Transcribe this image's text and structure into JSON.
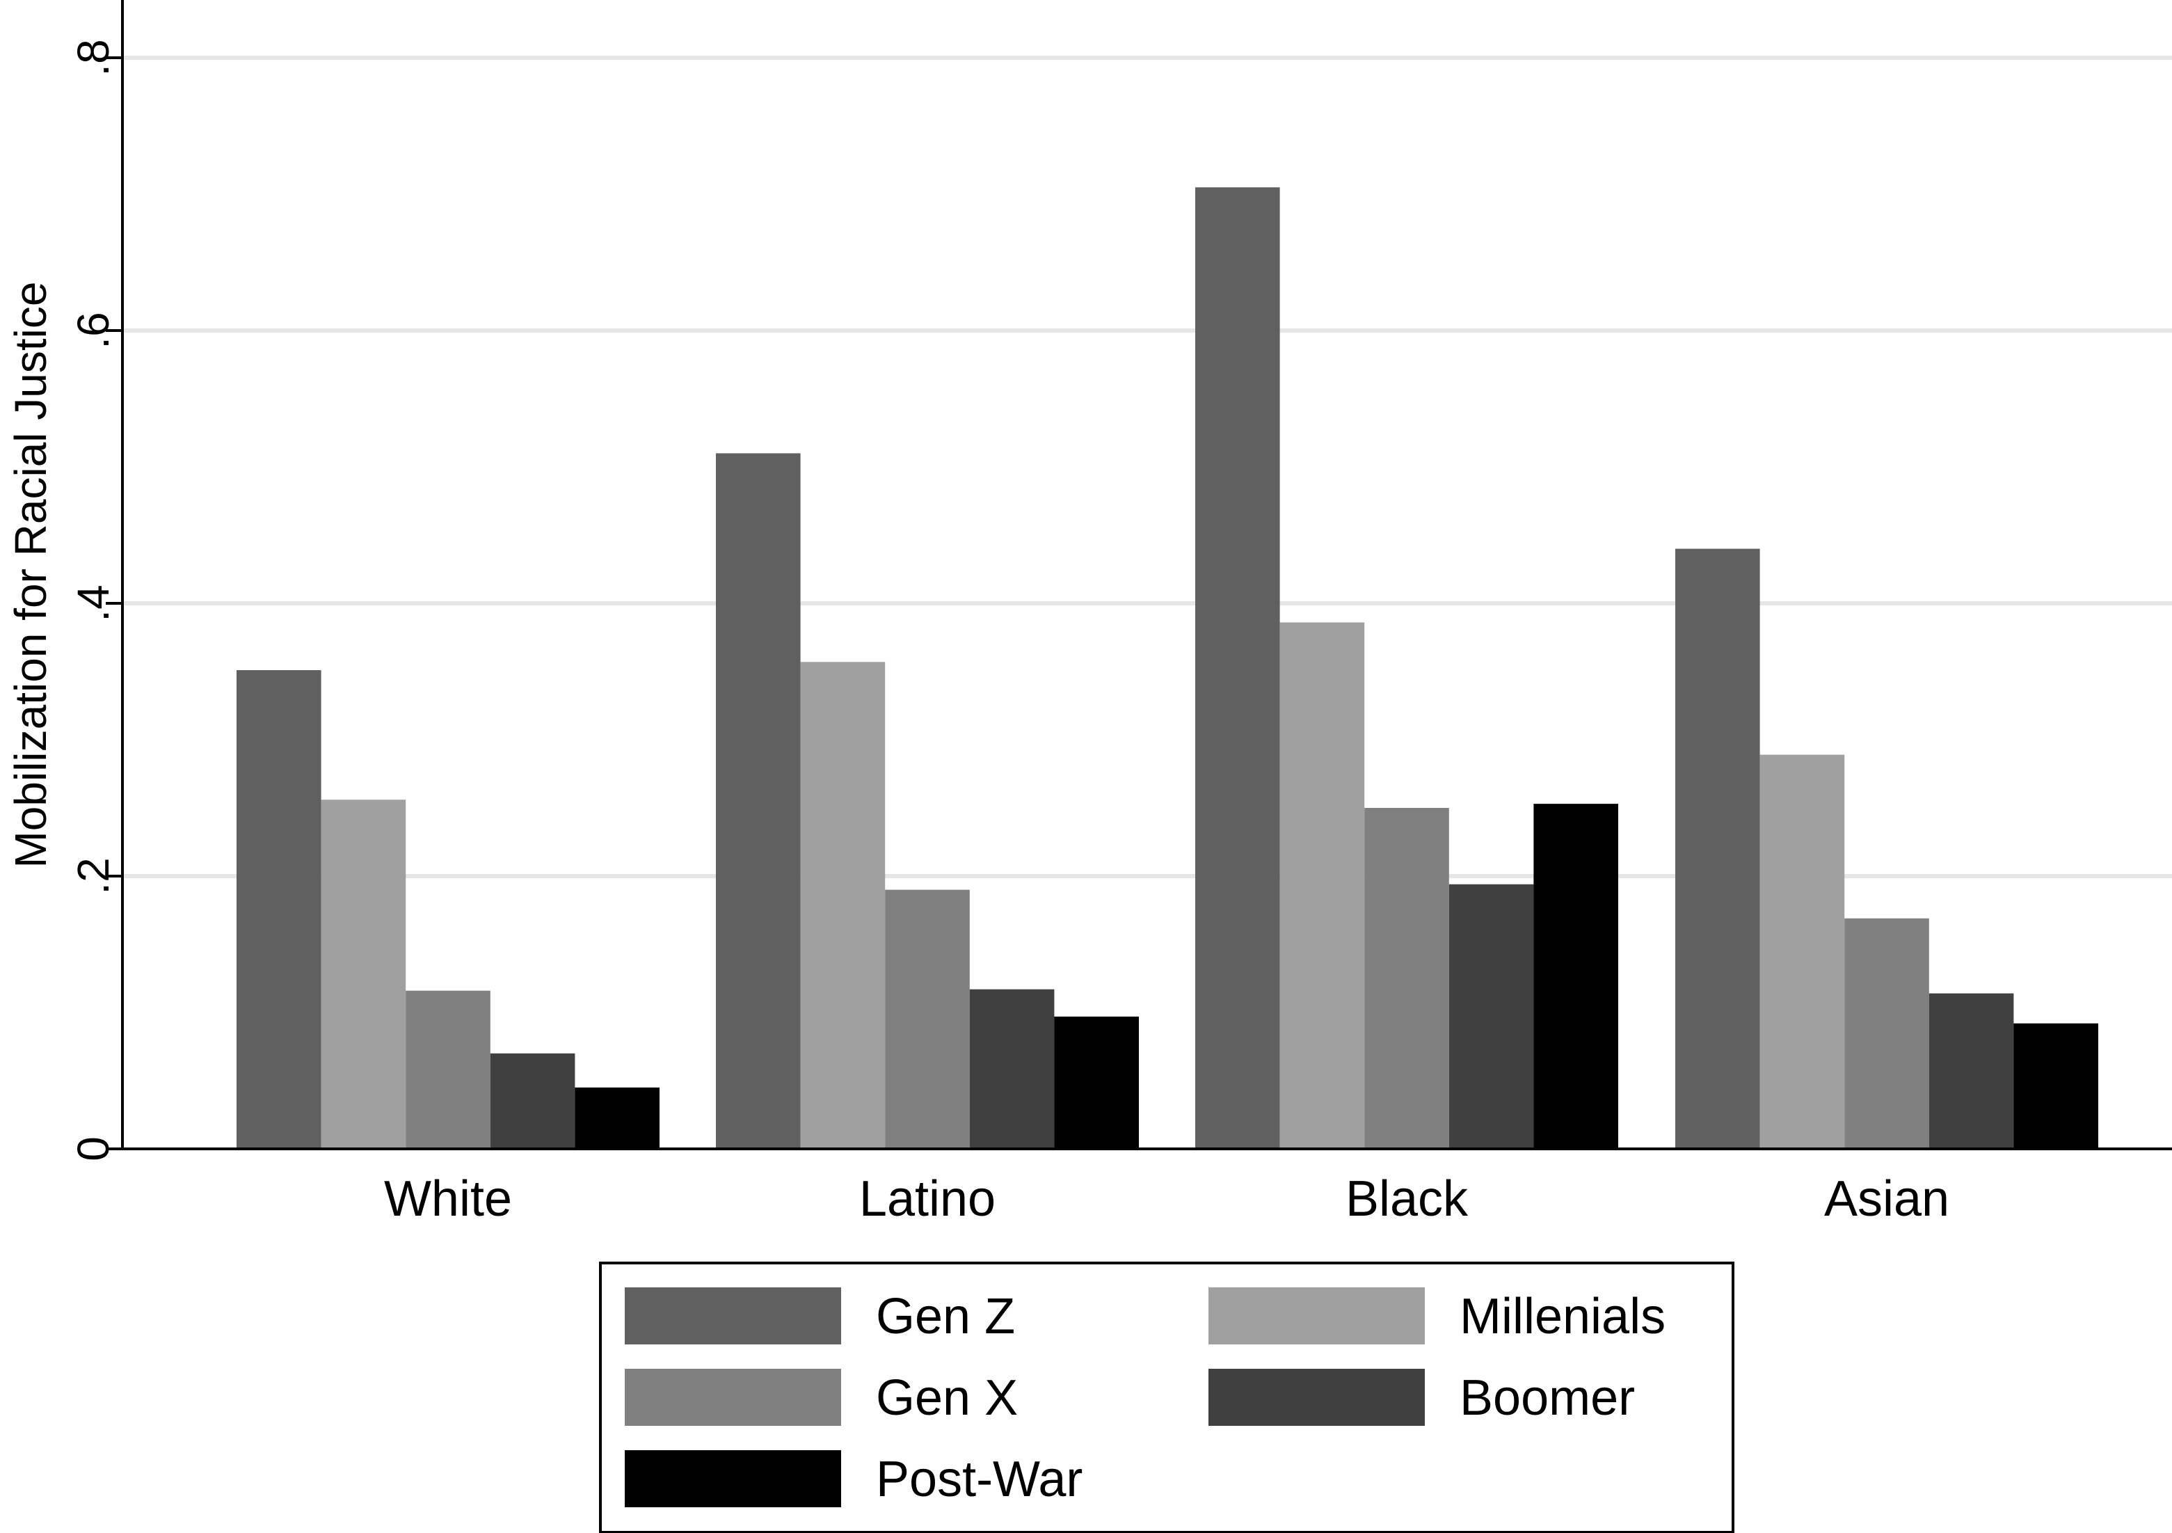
{
  "chart_data": {
    "type": "bar",
    "title": "",
    "xlabel": "",
    "ylabel": "Mobilization for Racial Justice",
    "ylim": [
      0,
      0.8
    ],
    "yticks": [
      {
        "value": 0,
        "label": "0"
      },
      {
        "value": 0.2,
        "label": ".2"
      },
      {
        "value": 0.4,
        "label": ".4"
      },
      {
        "value": 0.6,
        "label": ".6"
      },
      {
        "value": 0.8,
        "label": ".8"
      }
    ],
    "grid": true,
    "legend_position": "bottom",
    "categories": [
      "White",
      "Latino",
      "Black",
      "Asian"
    ],
    "series": [
      {
        "name": "Gen Z",
        "color": "#606060",
        "values": [
          0.351,
          0.51,
          0.705,
          0.44
        ]
      },
      {
        "name": "Millenials",
        "color": "#a0a0a0",
        "values": [
          0.256,
          0.357,
          0.386,
          0.289
        ]
      },
      {
        "name": "Gen X",
        "color": "#808080",
        "values": [
          0.116,
          0.19,
          0.25,
          0.169
        ]
      },
      {
        "name": "Boomer",
        "color": "#404040",
        "values": [
          0.07,
          0.117,
          0.194,
          0.114
        ]
      },
      {
        "name": "Post-War",
        "color": "#000000",
        "values": [
          0.045,
          0.097,
          0.253,
          0.092
        ]
      }
    ]
  }
}
